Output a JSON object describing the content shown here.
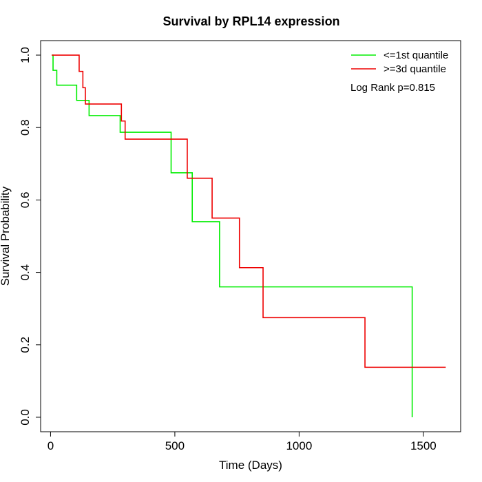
{
  "chart_data": {
    "type": "line",
    "subtype": "kaplan-meier-step",
    "title": "Survival by RPL14 expression",
    "xlabel": "Time (Days)",
    "ylabel": "Survival Probability",
    "xlim": [
      -40,
      1650
    ],
    "ylim": [
      -0.04,
      1.04
    ],
    "xticks": [
      0,
      500,
      1000,
      1500
    ],
    "yticks": [
      0.0,
      0.2,
      0.4,
      0.6,
      0.8,
      1.0
    ],
    "xtick_labels": [
      "0",
      "500",
      "1000",
      "1500"
    ],
    "ytick_labels": [
      "0.0",
      "0.2",
      "0.4",
      "0.6",
      "0.8",
      "1.0"
    ],
    "grid": false,
    "legend_position": "top-right",
    "annotation": "Log Rank p=0.815",
    "series": [
      {
        "name": "<=1st quantile",
        "color": "#00ee00",
        "x": [
          5,
          10,
          25,
          105,
          155,
          280,
          485,
          570,
          680,
          1455,
          1455
        ],
        "y": [
          1.0,
          0.958,
          0.917,
          0.875,
          0.833,
          0.787,
          0.675,
          0.54,
          0.36,
          0.36,
          0.0
        ]
      },
      {
        "name": ">=3d quantile",
        "color": "#ee0000",
        "x": [
          5,
          115,
          130,
          140,
          285,
          300,
          550,
          650,
          760,
          855,
          1265,
          1590
        ],
        "y": [
          1.0,
          0.955,
          0.91,
          0.865,
          0.818,
          0.768,
          0.66,
          0.55,
          0.413,
          0.275,
          0.138,
          0.138
        ]
      }
    ]
  }
}
